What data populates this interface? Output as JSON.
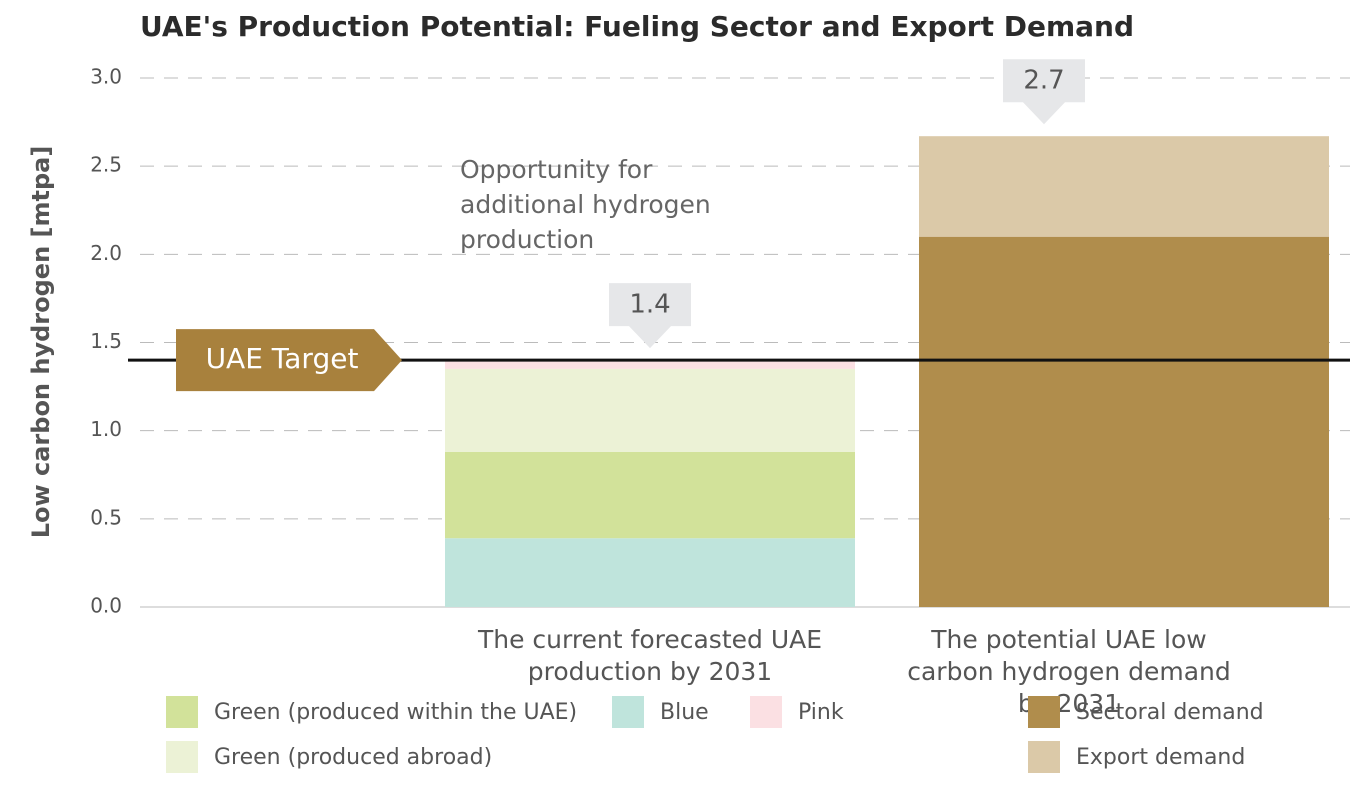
{
  "chart_data": {
    "type": "stacked_bar",
    "title": "UAE's Production Potential: Fueling Sector and Export Demand",
    "y_label": "Low carbon hydrogen [mtpa]",
    "categories": [
      "The current forecasted UAE production by 2031",
      "The potential UAE low carbon hydrogen demand by 2031"
    ],
    "series": [
      {
        "name": "Blue",
        "color": "#bfe4dc",
        "values": [
          0.39,
          null
        ]
      },
      {
        "name": "Green (produced within the UAE)",
        "color": "#d2e29a",
        "values": [
          0.49,
          null
        ]
      },
      {
        "name": "Green (produced abroad)",
        "color": "#ecf2d6",
        "values": [
          0.47,
          null
        ]
      },
      {
        "name": "Pink",
        "color": "#fbe0e3",
        "values": [
          0.05,
          null
        ]
      },
      {
        "name": "Sectoral demand",
        "color": "#b08d4c",
        "values": [
          null,
          2.1
        ]
      },
      {
        "name": "Export demand",
        "color": "#dbc9a8",
        "values": [
          null,
          0.57
        ]
      }
    ],
    "total_labels": [
      1.4,
      2.7
    ],
    "target": {
      "label": "UAE Target",
      "value": 1.4
    },
    "annotation": "Opportunity for additional hydrogen production",
    "ylim": [
      0,
      3
    ],
    "yticks": [
      {
        "value": 0,
        "label": "0.0"
      },
      0.5,
      {
        "value": 1,
        "label": "1.0"
      },
      1.5,
      {
        "value": 2,
        "label": "2.0"
      },
      2.5,
      {
        "value": 3,
        "label": "3.0"
      }
    ],
    "grid": true
  }
}
